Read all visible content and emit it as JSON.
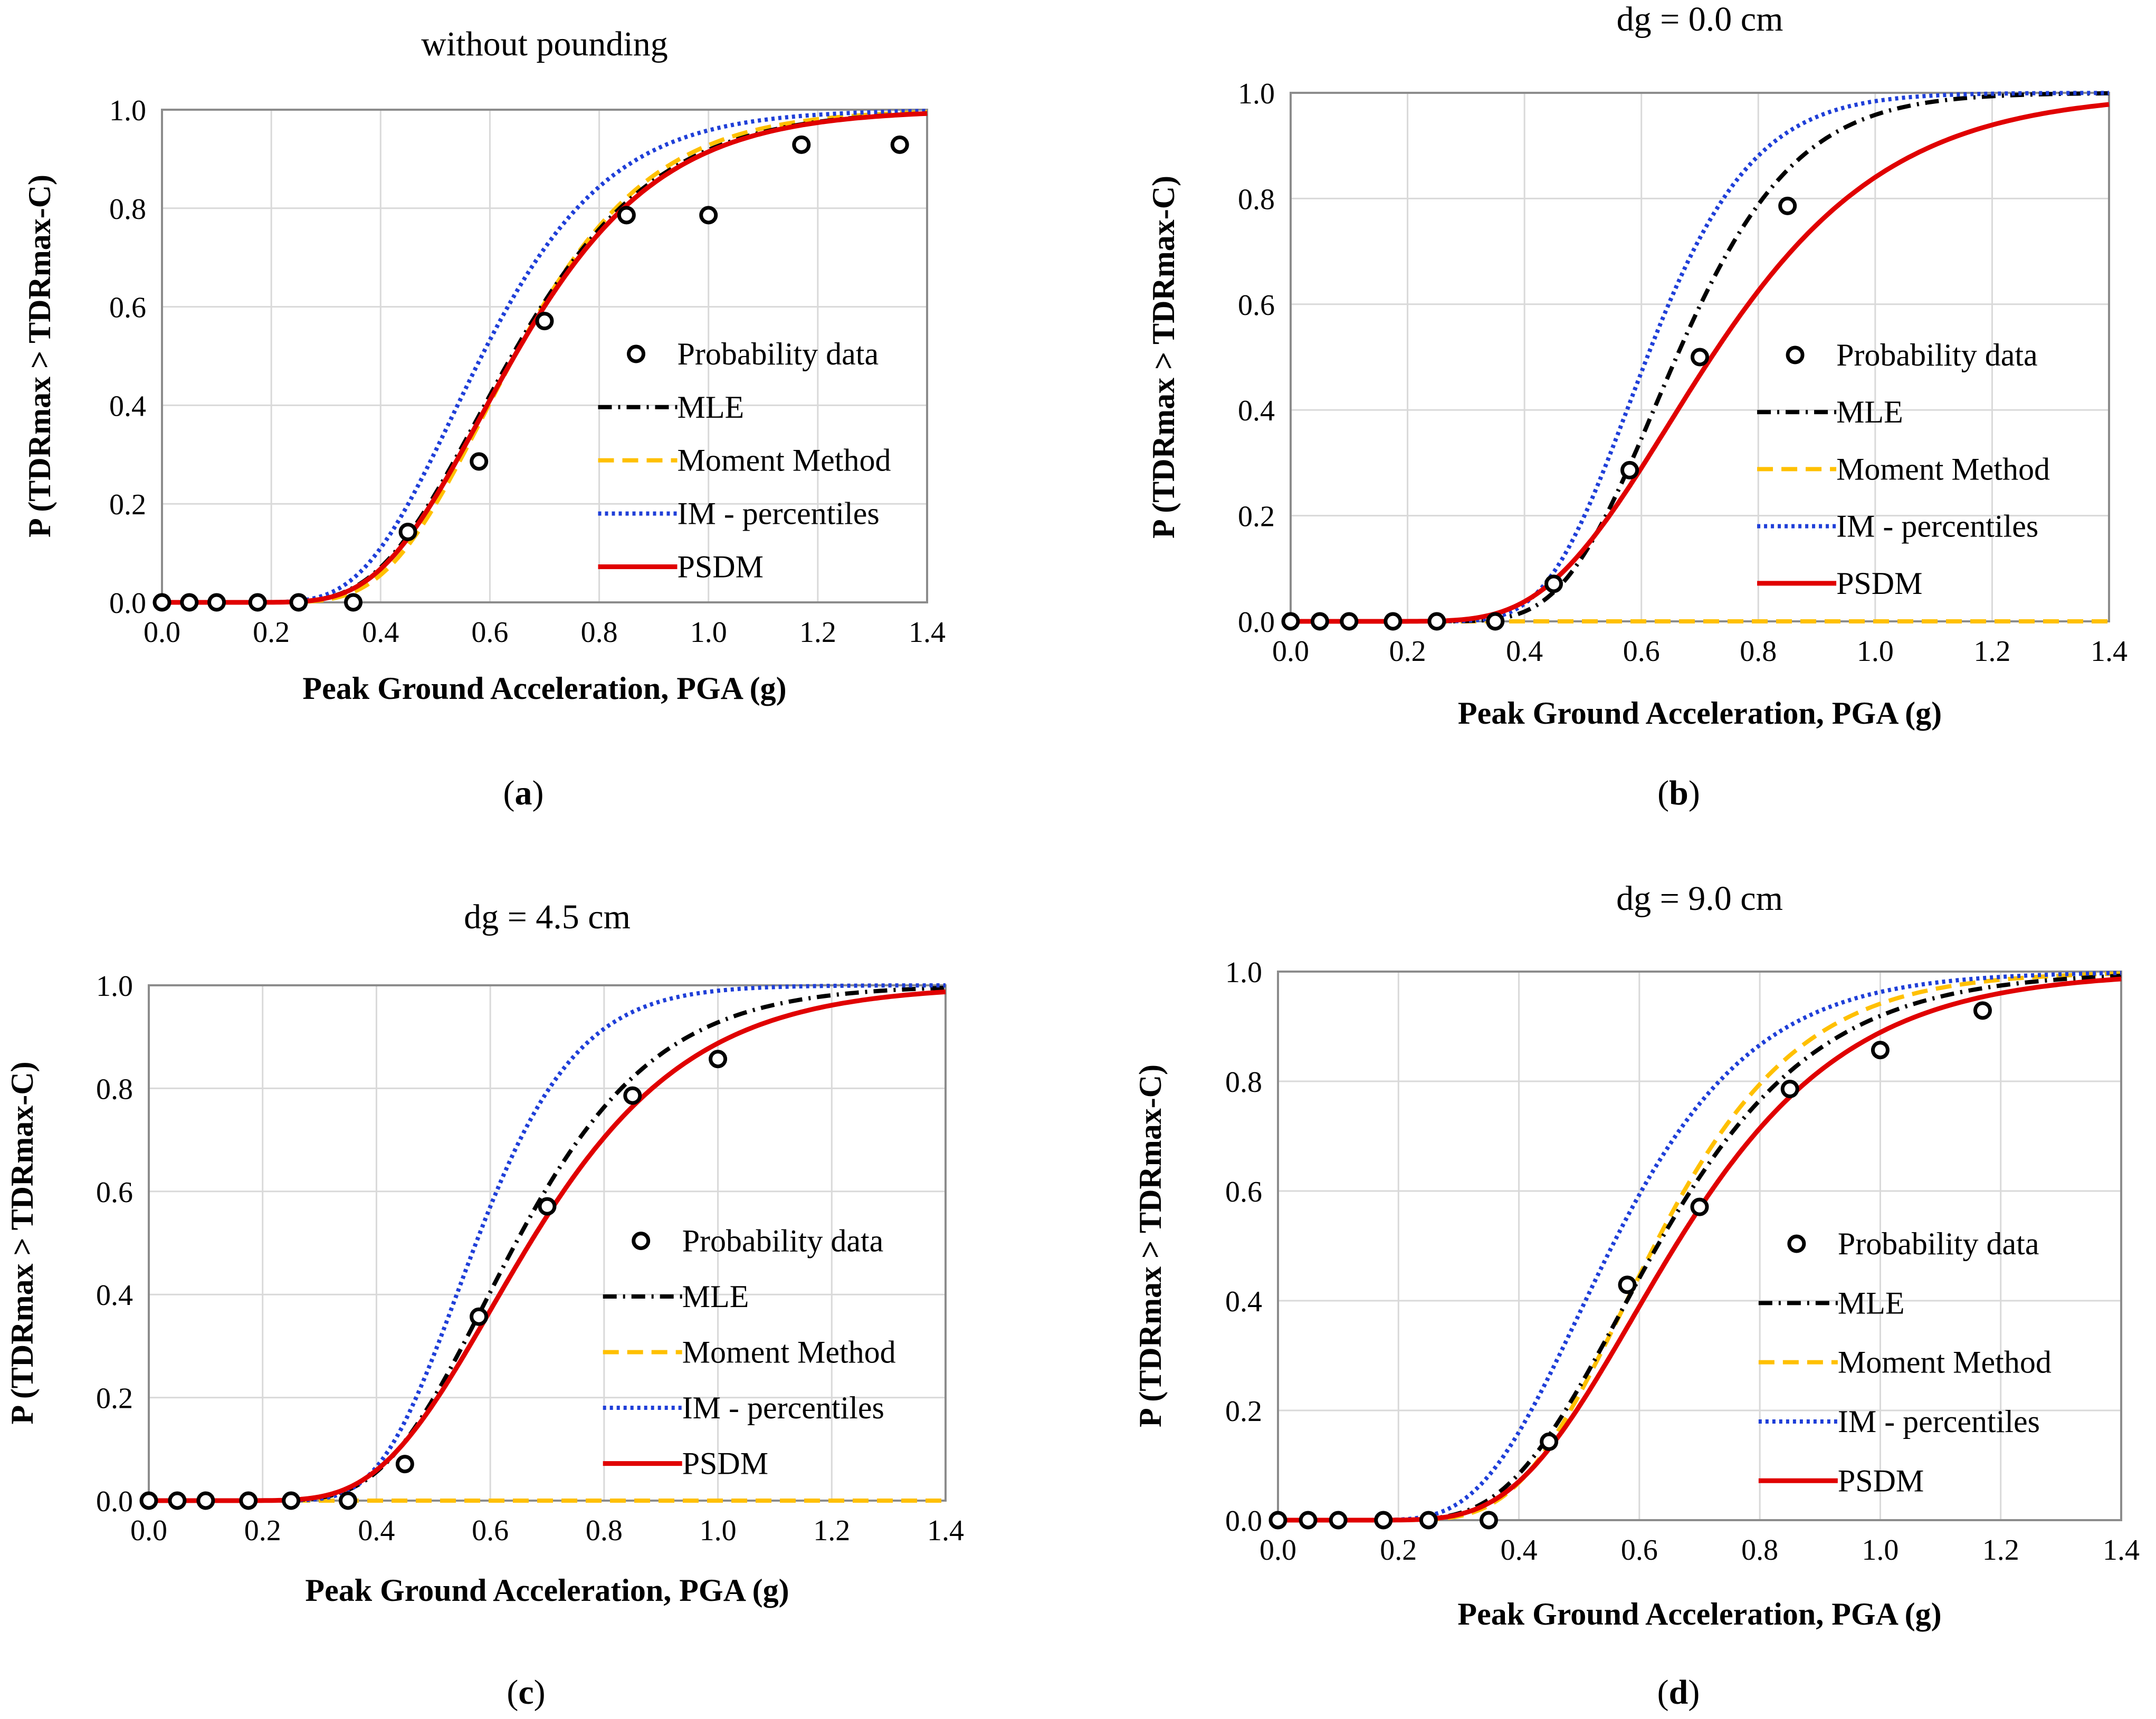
{
  "figure": {
    "legend_labels": [
      "Probability data",
      "MLE",
      "Moment Method",
      "IM - percentiles",
      "PSDM"
    ]
  },
  "style": {
    "data_color": "#000000",
    "mle_color": "#000000",
    "moment_color": "#ffc000",
    "im_color": "#1f3fd8",
    "psdm_color": "#e00000",
    "grid_color": "#d9d9d9",
    "frame_color": "#8c8c8c"
  },
  "chart_data": [
    {
      "id": "a",
      "type": "line",
      "title": "without pounding",
      "panel_label": "a",
      "xlabel": "Peak Ground Acceleration, PGA (g)",
      "ylabel": "P (TDRmax > TDRmax-C)",
      "xlim": [
        0.0,
        1.4
      ],
      "ylim": [
        0.0,
        1.0
      ],
      "xticks": [
        "0.0",
        "0.2",
        "0.4",
        "0.6",
        "0.8",
        "1.0",
        "1.2",
        "1.4"
      ],
      "yticks": [
        "0.0",
        "0.2",
        "0.4",
        "0.6",
        "0.8",
        "1.0"
      ],
      "grid": true,
      "legend_position": "right-middle",
      "data_points": {
        "x": [
          0.0,
          0.05,
          0.1,
          0.175,
          0.25,
          0.35,
          0.45,
          0.58,
          0.7,
          0.85,
          1.0,
          1.17,
          1.35
        ],
        "y": [
          0.0,
          0.0,
          0.0,
          0.0,
          0.0,
          0.0,
          0.143,
          0.286,
          0.571,
          0.786,
          0.786,
          0.929,
          0.929
        ]
      },
      "series": [
        {
          "name": "MLE",
          "model": "lognormal_cdf",
          "median": 0.64,
          "beta": 0.32
        },
        {
          "name": "Moment Method",
          "model": "lognormal_cdf",
          "median": 0.645,
          "beta": 0.3
        },
        {
          "name": "IM - percentiles",
          "model": "lognormal_cdf",
          "median": 0.585,
          "beta": 0.31
        },
        {
          "name": "PSDM",
          "model": "lognormal_cdf",
          "median": 0.645,
          "beta": 0.32
        }
      ]
    },
    {
      "id": "b",
      "type": "line",
      "title": "dg = 0.0 cm",
      "panel_label": "b",
      "xlabel": "Peak Ground Acceleration, PGA (g)",
      "ylabel": "P (TDRmax > TDRmax-C)",
      "xlim": [
        0.0,
        1.4
      ],
      "ylim": [
        0.0,
        1.0
      ],
      "xticks": [
        "0.0",
        "0.2",
        "0.4",
        "0.6",
        "0.8",
        "1.0",
        "1.2",
        "1.4"
      ],
      "yticks": [
        "0.0",
        "0.2",
        "0.4",
        "0.6",
        "0.8",
        "1.0"
      ],
      "grid": true,
      "legend_position": "right-middle",
      "data_points": {
        "x": [
          0.0,
          0.05,
          0.1,
          0.175,
          0.25,
          0.35,
          0.45,
          0.58,
          0.7,
          0.85
        ],
        "y": [
          0.0,
          0.0,
          0.0,
          0.0,
          0.0,
          0.0,
          0.071,
          0.286,
          0.5,
          0.786
        ]
      },
      "series": [
        {
          "name": "MLE",
          "model": "lognormal_cdf",
          "median": 0.66,
          "beta": 0.24
        },
        {
          "name": "Moment Method",
          "model": "constant",
          "value": 0.0
        },
        {
          "name": "IM - percentiles",
          "model": "lognormal_cdf",
          "median": 0.61,
          "beta": 0.23
        },
        {
          "name": "PSDM",
          "model": "lognormal_cdf",
          "median": 0.72,
          "beta": 0.33
        }
      ]
    },
    {
      "id": "c",
      "type": "line",
      "title": "dg = 4.5 cm",
      "panel_label": "c",
      "xlabel": "Peak Ground Acceleration, PGA (g)",
      "ylabel": "P (TDRmax > TDRmax-C)",
      "xlim": [
        0.0,
        1.4
      ],
      "ylim": [
        0.0,
        1.0
      ],
      "xticks": [
        "0.0",
        "0.2",
        "0.4",
        "0.6",
        "0.8",
        "1.0",
        "1.2",
        "1.4"
      ],
      "yticks": [
        "0.0",
        "0.2",
        "0.4",
        "0.6",
        "0.8",
        "1.0"
      ],
      "grid": true,
      "legend_position": "right-middle",
      "data_points": {
        "x": [
          0.0,
          0.05,
          0.1,
          0.175,
          0.25,
          0.35,
          0.45,
          0.58,
          0.7,
          0.85,
          1.0
        ],
        "y": [
          0.0,
          0.0,
          0.0,
          0.0,
          0.0,
          0.0,
          0.071,
          0.357,
          0.571,
          0.786,
          0.857
        ]
      },
      "series": [
        {
          "name": "MLE",
          "model": "lognormal_cdf",
          "median": 0.645,
          "beta": 0.3
        },
        {
          "name": "Moment Method",
          "model": "constant",
          "value": 0.0
        },
        {
          "name": "IM - percentiles",
          "model": "lognormal_cdf",
          "median": 0.575,
          "beta": 0.24
        },
        {
          "name": "PSDM",
          "model": "lognormal_cdf",
          "median": 0.67,
          "beta": 0.33
        }
      ]
    },
    {
      "id": "d",
      "type": "line",
      "title": "dg = 9.0 cm",
      "panel_label": "d",
      "xlabel": "Peak Ground Acceleration, PGA (g)",
      "ylabel": "P (TDRmax > TDRmax-C)",
      "xlim": [
        0.0,
        1.4
      ],
      "ylim": [
        0.0,
        1.0
      ],
      "xticks": [
        "0.0",
        "0.2",
        "0.4",
        "0.6",
        "0.8",
        "1.0",
        "1.2",
        "1.4"
      ],
      "yticks": [
        "0.0",
        "0.2",
        "0.4",
        "0.6",
        "0.8",
        "1.0"
      ],
      "grid": true,
      "legend_position": "right-middle",
      "data_points": {
        "x": [
          0.0,
          0.05,
          0.1,
          0.175,
          0.25,
          0.35,
          0.45,
          0.58,
          0.7,
          0.85,
          1.0,
          1.17
        ],
        "y": [
          0.0,
          0.0,
          0.0,
          0.0,
          0.0,
          0.0,
          0.143,
          0.429,
          0.571,
          0.786,
          0.857,
          0.929
        ]
      },
      "series": [
        {
          "name": "MLE",
          "model": "lognormal_cdf",
          "median": 0.63,
          "beta": 0.33
        },
        {
          "name": "Moment Method",
          "model": "lognormal_cdf",
          "median": 0.625,
          "beta": 0.3
        },
        {
          "name": "IM - percentiles",
          "model": "lognormal_cdf",
          "median": 0.555,
          "beta": 0.33
        },
        {
          "name": "PSDM",
          "model": "lognormal_cdf",
          "median": 0.66,
          "beta": 0.34
        }
      ]
    }
  ]
}
